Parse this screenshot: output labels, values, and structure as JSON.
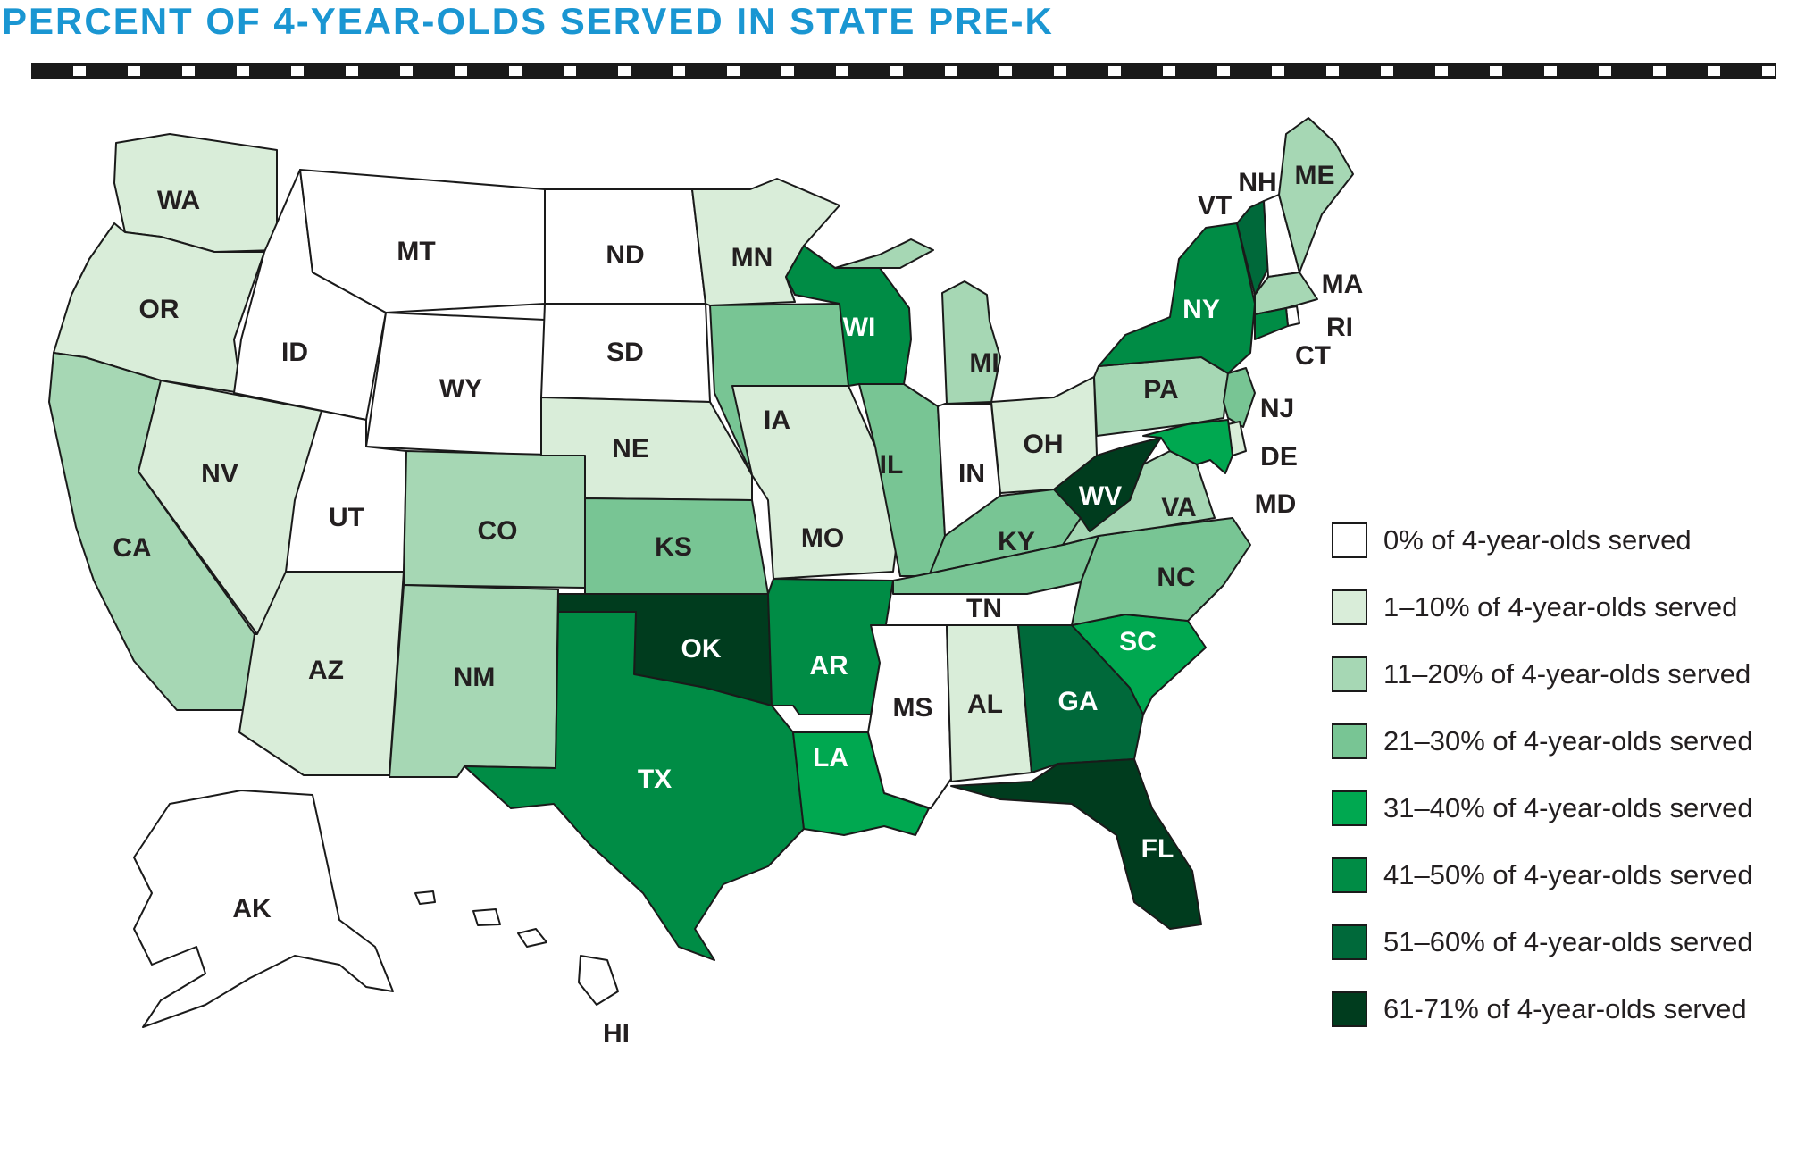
{
  "title": "PERCENT OF 4-YEAR-OLDS SERVED IN STATE PRE-K",
  "colors": {
    "title": "#1a96d2",
    "border": "#1a1a1a",
    "categories": [
      "#ffffff",
      "#d9edd9",
      "#a6d7b4",
      "#78c594",
      "#00a850",
      "#008c45",
      "#00693a",
      "#003c1e"
    ]
  },
  "legend": [
    "0% of 4-year-olds served",
    "1–10% of 4-year-olds served",
    "11–20% of 4-year-olds served",
    "21–30% of 4-year-olds served",
    "31–40% of 4-year-olds served",
    "41–50% of 4-year-olds served",
    "51–60% of 4-year-olds served",
    "61-71% of 4-year-olds served"
  ],
  "states": [
    {
      "code": "WA",
      "category": 1
    },
    {
      "code": "OR",
      "category": 1
    },
    {
      "code": "CA",
      "category": 2
    },
    {
      "code": "ID",
      "category": 0
    },
    {
      "code": "NV",
      "category": 1
    },
    {
      "code": "MT",
      "category": 0
    },
    {
      "code": "WY",
      "category": 0
    },
    {
      "code": "UT",
      "category": 0
    },
    {
      "code": "AZ",
      "category": 1
    },
    {
      "code": "CO",
      "category": 2
    },
    {
      "code": "NM",
      "category": 2
    },
    {
      "code": "ND",
      "category": 0
    },
    {
      "code": "SD",
      "category": 0
    },
    {
      "code": "NE",
      "category": 1
    },
    {
      "code": "KS",
      "category": 3
    },
    {
      "code": "OK",
      "category": 7
    },
    {
      "code": "TX",
      "category": 5
    },
    {
      "code": "MN",
      "category": 1
    },
    {
      "code": "IA",
      "category": 3
    },
    {
      "code": "MO",
      "category": 1
    },
    {
      "code": "AR",
      "category": 5
    },
    {
      "code": "LA",
      "category": 4
    },
    {
      "code": "WI",
      "category": 5
    },
    {
      "code": "IL",
      "category": 3
    },
    {
      "code": "MI",
      "category": 2
    },
    {
      "code": "IN",
      "category": 0
    },
    {
      "code": "OH",
      "category": 1
    },
    {
      "code": "KY",
      "category": 3
    },
    {
      "code": "TN",
      "category": 3
    },
    {
      "code": "MS",
      "category": 0
    },
    {
      "code": "AL",
      "category": 1
    },
    {
      "code": "GA",
      "category": 6
    },
    {
      "code": "FL",
      "category": 7
    },
    {
      "code": "SC",
      "category": 4
    },
    {
      "code": "NC",
      "category": 3
    },
    {
      "code": "VA",
      "category": 2
    },
    {
      "code": "WV",
      "category": 7
    },
    {
      "code": "PA",
      "category": 2
    },
    {
      "code": "NY",
      "category": 5
    },
    {
      "code": "VT",
      "category": 6
    },
    {
      "code": "NH",
      "category": 0
    },
    {
      "code": "ME",
      "category": 2
    },
    {
      "code": "MA",
      "category": 2
    },
    {
      "code": "RI",
      "category": 0
    },
    {
      "code": "CT",
      "category": 5
    },
    {
      "code": "NJ",
      "category": 3
    },
    {
      "code": "DE",
      "category": 1
    },
    {
      "code": "MD",
      "category": 4
    },
    {
      "code": "AK",
      "category": 0
    },
    {
      "code": "HI",
      "category": 0
    }
  ]
}
